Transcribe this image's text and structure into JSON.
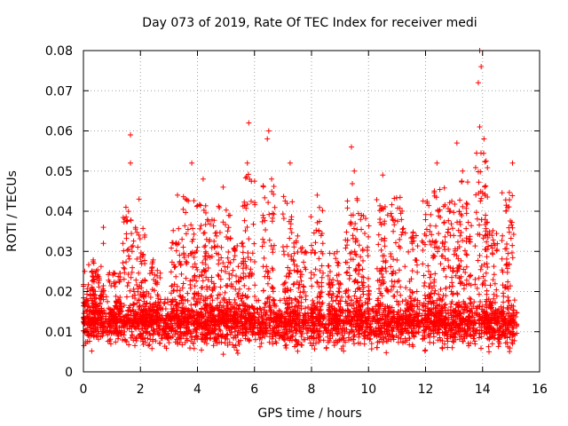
{
  "chart_data": {
    "type": "scatter",
    "title": "Day 073 of 2019, Rate Of TEC Index for receiver medi",
    "xlabel": "GPS time / hours",
    "ylabel": "ROTI / TECUs",
    "xlim": [
      0,
      16
    ],
    "ylim": [
      0,
      0.08
    ],
    "grid": true,
    "marker": "+",
    "color": "#ff0000",
    "x_ticks": [
      0,
      2,
      4,
      6,
      8,
      10,
      12,
      14,
      16
    ],
    "x_tick_labels": [
      "0",
      "2",
      "4",
      "6",
      "8",
      "10",
      "12",
      "14",
      "16"
    ],
    "y_ticks": [
      0,
      0.01,
      0.02,
      0.03,
      0.04,
      0.05,
      0.06,
      0.07,
      0.08
    ],
    "y_tick_labels": [
      "0",
      "0.01",
      "0.02",
      "0.03",
      "0.04",
      "0.05",
      "0.06",
      "0.07",
      "0.08"
    ],
    "x_data_range": [
      0,
      15.2
    ],
    "baseline_band": [
      0.006,
      0.016
    ],
    "notable_points": [
      {
        "x": 1.65,
        "y": 0.059
      },
      {
        "x": 1.65,
        "y": 0.052
      },
      {
        "x": 1.95,
        "y": 0.043
      },
      {
        "x": 3.3,
        "y": 0.044
      },
      {
        "x": 3.8,
        "y": 0.052
      },
      {
        "x": 4.2,
        "y": 0.048
      },
      {
        "x": 4.9,
        "y": 0.046
      },
      {
        "x": 5.8,
        "y": 0.062
      },
      {
        "x": 5.75,
        "y": 0.052
      },
      {
        "x": 6.5,
        "y": 0.06
      },
      {
        "x": 6.45,
        "y": 0.058
      },
      {
        "x": 6.6,
        "y": 0.048
      },
      {
        "x": 7.25,
        "y": 0.052
      },
      {
        "x": 8.2,
        "y": 0.044
      },
      {
        "x": 9.4,
        "y": 0.056
      },
      {
        "x": 9.5,
        "y": 0.05
      },
      {
        "x": 10.5,
        "y": 0.049
      },
      {
        "x": 12.4,
        "y": 0.052
      },
      {
        "x": 13.1,
        "y": 0.057
      },
      {
        "x": 13.3,
        "y": 0.05
      },
      {
        "x": 13.9,
        "y": 0.08
      },
      {
        "x": 13.95,
        "y": 0.076
      },
      {
        "x": 13.85,
        "y": 0.072
      },
      {
        "x": 13.9,
        "y": 0.061
      },
      {
        "x": 14.05,
        "y": 0.058
      },
      {
        "x": 15.05,
        "y": 0.052
      },
      {
        "x": 0.7,
        "y": 0.036
      },
      {
        "x": 0.7,
        "y": 0.032
      }
    ],
    "bursts": [
      {
        "x": 0.2,
        "ymax": 0.028
      },
      {
        "x": 0.5,
        "ymax": 0.027
      },
      {
        "x": 1.1,
        "ymax": 0.025
      },
      {
        "x": 1.6,
        "ymax": 0.041
      },
      {
        "x": 2.0,
        "ymax": 0.036
      },
      {
        "x": 2.5,
        "ymax": 0.028
      },
      {
        "x": 3.3,
        "ymax": 0.036
      },
      {
        "x": 3.7,
        "ymax": 0.045
      },
      {
        "x": 4.1,
        "ymax": 0.043
      },
      {
        "x": 4.5,
        "ymax": 0.038
      },
      {
        "x": 4.95,
        "ymax": 0.044
      },
      {
        "x": 5.4,
        "ymax": 0.032
      },
      {
        "x": 5.8,
        "ymax": 0.05
      },
      {
        "x": 6.5,
        "ymax": 0.048
      },
      {
        "x": 7.2,
        "ymax": 0.045
      },
      {
        "x": 7.6,
        "ymax": 0.034
      },
      {
        "x": 8.2,
        "ymax": 0.042
      },
      {
        "x": 8.8,
        "ymax": 0.03
      },
      {
        "x": 9.4,
        "ymax": 0.048
      },
      {
        "x": 9.8,
        "ymax": 0.04
      },
      {
        "x": 10.5,
        "ymax": 0.043
      },
      {
        "x": 11.0,
        "ymax": 0.044
      },
      {
        "x": 11.5,
        "ymax": 0.035
      },
      {
        "x": 12.1,
        "ymax": 0.043
      },
      {
        "x": 12.5,
        "ymax": 0.046
      },
      {
        "x": 13.0,
        "ymax": 0.044
      },
      {
        "x": 13.4,
        "ymax": 0.048
      },
      {
        "x": 13.95,
        "ymax": 0.055
      },
      {
        "x": 14.3,
        "ymax": 0.038
      },
      {
        "x": 14.9,
        "ymax": 0.045
      }
    ]
  }
}
